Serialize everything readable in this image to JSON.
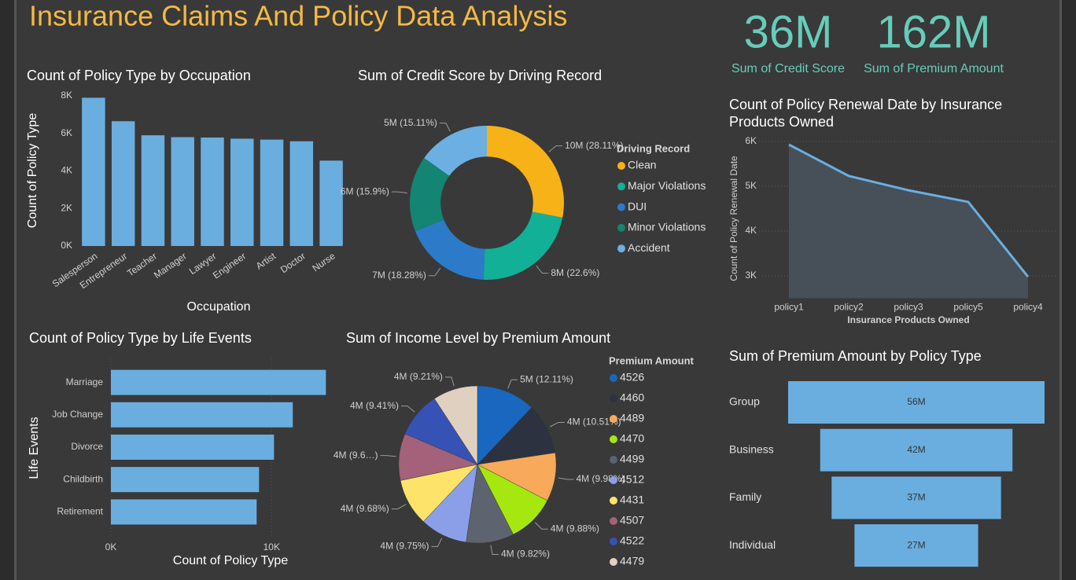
{
  "header": {
    "title": "Insurance Claims And Policy Data Analysis"
  },
  "cards": [
    {
      "value": "36M",
      "label": "Sum of Credit Score"
    },
    {
      "value": "162M",
      "label": "Sum of Premium Amount"
    }
  ],
  "chart_data": [
    {
      "type": "bar",
      "title": "Count of Policy Type by Occupation",
      "categories": [
        "Salesperson",
        "Entrepreneur",
        "Teacher",
        "Manager",
        "Lawyer",
        "Engineer",
        "Artist",
        "Doctor",
        "Nurse"
      ],
      "values": [
        7900,
        6650,
        5900,
        5800,
        5780,
        5720,
        5670,
        5580,
        4550
      ],
      "color": "#6aaee0",
      "ylim": [
        0,
        8000
      ],
      "yticks": [
        {
          "value": 0,
          "label": "0K"
        },
        {
          "value": 2000,
          "label": "2K"
        },
        {
          "value": 4000,
          "label": "4K"
        },
        {
          "value": 6000,
          "label": "6K"
        },
        {
          "value": 8000,
          "label": "8K"
        }
      ],
      "x_label": "Occupation",
      "y_label": "Count of Policy Type",
      "grid": false
    },
    {
      "type": "donut",
      "title": "Sum of Credit Score by Driving Record",
      "legend_title": "Driving Record",
      "categories": [
        "Clean",
        "Major Violations",
        "DUI",
        "Minor Violations",
        "Accident"
      ],
      "values": [
        28.11,
        22.6,
        18.28,
        15.9,
        15.11
      ],
      "value_labels": [
        "10M (28.11%)",
        "8M (22.6%)",
        "7M (18.28%)",
        "6M (15.9%)",
        "5M (15.11%)"
      ],
      "colors": [
        "#f6b216",
        "#12b096",
        "#2b7bc9",
        "#148473",
        "#6cb0e3"
      ]
    },
    {
      "type": "pie",
      "title": "Sum of Income Level by Premium Amount",
      "legend_title": "Premium Amount",
      "categories": [
        "4526",
        "4460",
        "4489",
        "4470",
        "4499",
        "4512",
        "4431",
        "4507",
        "4522",
        "4479"
      ],
      "values": [
        12.11,
        10.51,
        9.98,
        9.88,
        9.82,
        9.75,
        9.68,
        9.65,
        9.41,
        9.21
      ],
      "value_labels": [
        "5M (12.11%)",
        "4M (10.51%)",
        "4M (9.98%)",
        "4M (9.88%)",
        "4M (9.82%)",
        "4M (9.75%)",
        "4M (9.68%)",
        "4M (9.6…)",
        "4M (9.41%)",
        "4M (9.21%)"
      ],
      "colors": [
        "#1967bf",
        "#2c3240",
        "#f9a95a",
        "#a6e70f",
        "#5d6470",
        "#8a9fe8",
        "#fde36a",
        "#a3617a",
        "#3652b5",
        "#e0d0c0"
      ]
    },
    {
      "type": "area",
      "title": "Count of Policy Renewal Date by Insurance Products Owned",
      "categories": [
        "policy1",
        "policy2",
        "policy3",
        "policy5",
        "policy4"
      ],
      "values": [
        5930,
        5230,
        4910,
        4650,
        2980
      ],
      "color": "#6aaee0",
      "fill": "#474f58",
      "ylim": [
        2500,
        6200
      ],
      "yticks": [
        {
          "value": 3000,
          "label": "3K"
        },
        {
          "value": 4000,
          "label": "4K"
        },
        {
          "value": 5000,
          "label": "5K"
        },
        {
          "value": 6000,
          "label": "6K"
        }
      ],
      "x_label": "Insurance Products Owned",
      "y_label": "Count of Policy Renewal Date",
      "grid": true
    },
    {
      "type": "funnel",
      "title": "Sum of Premium Amount by Policy Type",
      "categories": [
        "Group",
        "Business",
        "Family",
        "Individual"
      ],
      "values": [
        56,
        42,
        37,
        27
      ],
      "value_labels": [
        "56M",
        "42M",
        "37M",
        "27M"
      ],
      "color": "#6aaee0"
    },
    {
      "type": "hbar",
      "title": "Count of Policy Type by Life Events",
      "categories": [
        "Marriage",
        "Job Change",
        "Divorce",
        "Childbirth",
        "Retirement"
      ],
      "values": [
        13380,
        11320,
        10150,
        9220,
        9070
      ],
      "color": "#6aaee0",
      "xlim": [
        0,
        14000
      ],
      "xticks": [
        {
          "value": 0,
          "label": "0K"
        },
        {
          "value": 10000,
          "label": "10K"
        }
      ],
      "x_label": "Count of Policy Type",
      "y_label": "Life Events",
      "grid": true
    }
  ]
}
